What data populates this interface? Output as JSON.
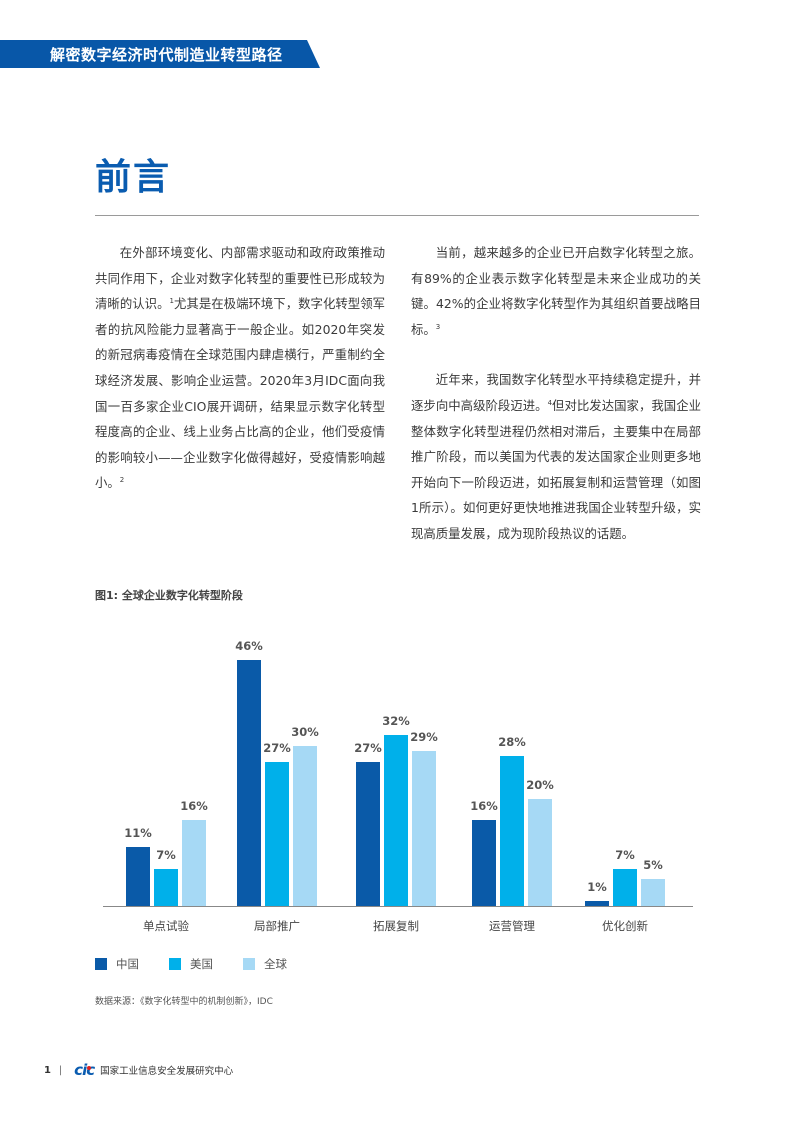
{
  "header": {
    "banner_title": "解密数字经济时代制造业转型路径",
    "accent_color": "#0857a8"
  },
  "section": {
    "title": "前言"
  },
  "body": {
    "left_paragraphs": [
      {
        "text": "在外部环境变化、内部需求驱动和政府政策推动共同作用下，企业对数字化转型的重要性已形成较为清晰的认识。",
        "sup": "1",
        "text2": "尤其是在极端环境下，数字化转型领军者的抗风险能力显著高于一般企业。如2020年突发的新冠病毒疫情在全球范围内肆虐横行，严重制约全球经济发展、影响企业运营。2020年3月IDC面向我国一百多家企业CIO展开调研，结果显示数字化转型程度高的企业、线上业务占比高的企业，他们受疫情的影响较小——企业数字化做得越好，受疫情影响越小。",
        "sup2": "2"
      }
    ],
    "right_paragraphs": [
      {
        "text": "当前，越来越多的企业已开启数字化转型之旅。有89%的企业表示数字化转型是未来企业成功的关键。42%的企业将数字化转型作为其组织首要战略目标。",
        "sup": "3"
      },
      {
        "text": "近年来，我国数字化转型水平持续稳定提升，并逐步向中高级阶段迈进。",
        "sup": "4",
        "text2": "但对比发达国家，我国企业整体数字化转型进程仍然相对滞后，主要集中在局部推广阶段，而以美国为代表的发达国家企业则更多地开始向下一阶段迈进，如拓展复制和运营管理（如图1所示）。如何更好更快地推进我国企业转型升级，实现高质量发展，成为现阶段热议的话题。"
      }
    ]
  },
  "figure": {
    "title": "图1: 全球企业数字化转型阶段",
    "source": "数据来源：《数字化转型中的机制创新》，IDC"
  },
  "chart_data": {
    "type": "bar",
    "title": "图1: 全球企业数字化转型阶段",
    "categories": [
      "单点试验",
      "局部推广",
      "拓展复制",
      "运营管理",
      "优化创新"
    ],
    "series": [
      {
        "name": "中国",
        "color": "#0a5aa8",
        "values": [
          11,
          46,
          27,
          16,
          1
        ],
        "labels": [
          "11%",
          "46%",
          "27%",
          "16%",
          "1%"
        ]
      },
      {
        "name": "美国",
        "color": "#00b0ea",
        "values": [
          7,
          27,
          32,
          28,
          7
        ],
        "labels": [
          "7%",
          "27%",
          "32%",
          "28%",
          "7%"
        ]
      },
      {
        "name": "全球",
        "color": "#a6d9f5",
        "values": [
          16,
          30,
          29,
          20,
          5
        ],
        "labels": [
          "16%",
          "30%",
          "29%",
          "20%",
          "5%"
        ]
      }
    ],
    "xlabel": "",
    "ylabel": "",
    "ylim": [
      0,
      50
    ],
    "grid": false,
    "legend_position": "bottom-left",
    "value_unit": "%"
  },
  "footer": {
    "page_number": "1",
    "separator": "|",
    "logo_text": "cic",
    "org_name": "国家工业信息安全发展研究中心"
  }
}
